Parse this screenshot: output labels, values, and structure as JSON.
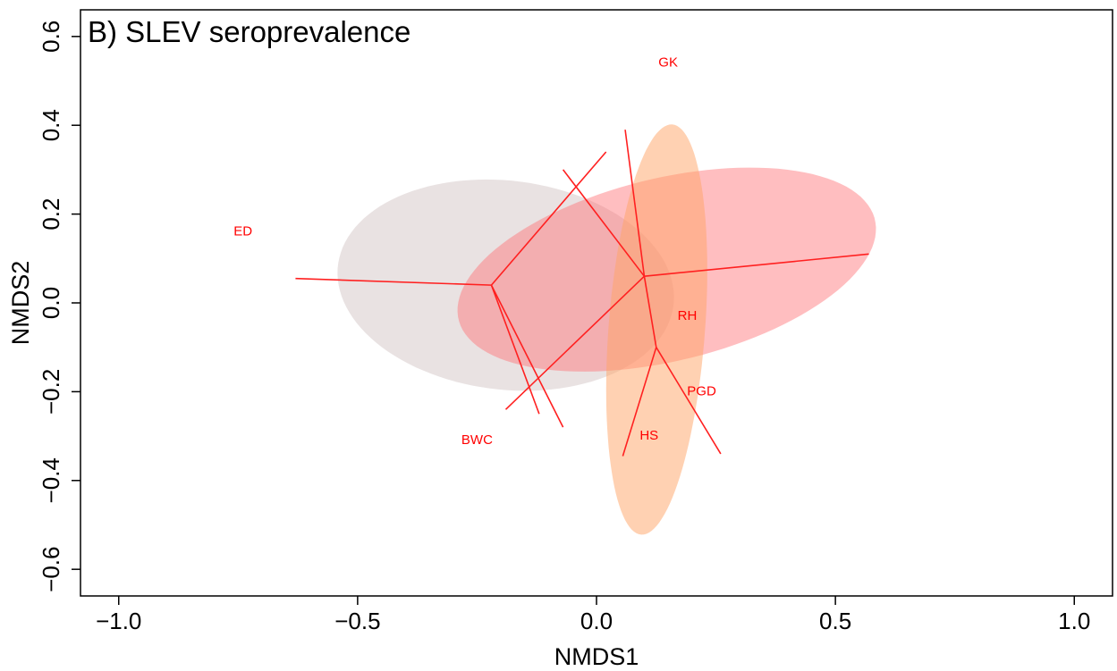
{
  "chart_data": {
    "type": "scatter",
    "title": "B) SLEV seroprevalence",
    "xlabel": "NMDS1",
    "ylabel": "NMDS2",
    "xlim": [
      -1.08,
      1.08
    ],
    "ylim": [
      -0.66,
      0.66
    ],
    "x_ticks": [
      -1.0,
      -0.5,
      0.0,
      0.5,
      1.0
    ],
    "x_tick_labels": [
      "−1.0",
      "−0.5",
      "0.0",
      "0.5",
      "1.0"
    ],
    "y_ticks": [
      -0.6,
      -0.4,
      -0.2,
      0.0,
      0.2,
      0.4,
      0.6
    ],
    "y_tick_labels": [
      "−0.6",
      "−0.4",
      "−0.2",
      "0.0",
      "0.2",
      "0.4",
      "0.6"
    ],
    "grid": false,
    "legend": "none",
    "site_color": "#ff0000",
    "spider_color": "#ff2020",
    "sites": [
      {
        "label": "GK",
        "x": 0.15,
        "y": 0.54
      },
      {
        "label": "ED",
        "x": -0.74,
        "y": 0.16
      },
      {
        "label": "RH",
        "x": 0.19,
        "y": -0.03
      },
      {
        "label": "PGD",
        "x": 0.22,
        "y": -0.2
      },
      {
        "label": "HS",
        "x": 0.11,
        "y": -0.3
      },
      {
        "label": "BWC",
        "x": -0.25,
        "y": -0.31
      }
    ],
    "groups": [
      {
        "color": "#d3c5c5",
        "opacity": 0.5,
        "centroid": {
          "x": -0.22,
          "y": 0.04
        },
        "ellipse": {
          "cx": -0.19,
          "cy": 0.04,
          "rx": 0.354,
          "ry": 0.235,
          "angle_deg": -8
        },
        "spokes": [
          [
            -0.63,
            0.055
          ],
          [
            0.02,
            0.34
          ],
          [
            -0.07,
            -0.28
          ],
          [
            -0.12,
            -0.25
          ]
        ]
      },
      {
        "color": "#ff6e73",
        "opacity": 0.45,
        "centroid": {
          "x": 0.1,
          "y": 0.06
        },
        "ellipse": {
          "cx": 0.147,
          "cy": 0.075,
          "rx": 0.45,
          "ry": 0.205,
          "angle_deg": 15
        },
        "spokes": [
          [
            0.57,
            0.11
          ],
          [
            0.06,
            0.39
          ],
          [
            -0.07,
            0.3
          ],
          [
            -0.19,
            -0.24
          ]
        ]
      },
      {
        "color": "#ffa366",
        "opacity": 0.5,
        "centroid": {
          "x": 0.125,
          "y": -0.1
        },
        "ellipse": {
          "cx": 0.126,
          "cy": -0.06,
          "rx": 0.101,
          "ry": 0.463,
          "angle_deg": -4
        },
        "spokes": [
          [
            0.1,
            0.06
          ],
          [
            0.26,
            -0.34
          ],
          [
            0.055,
            -0.345
          ]
        ]
      }
    ]
  }
}
